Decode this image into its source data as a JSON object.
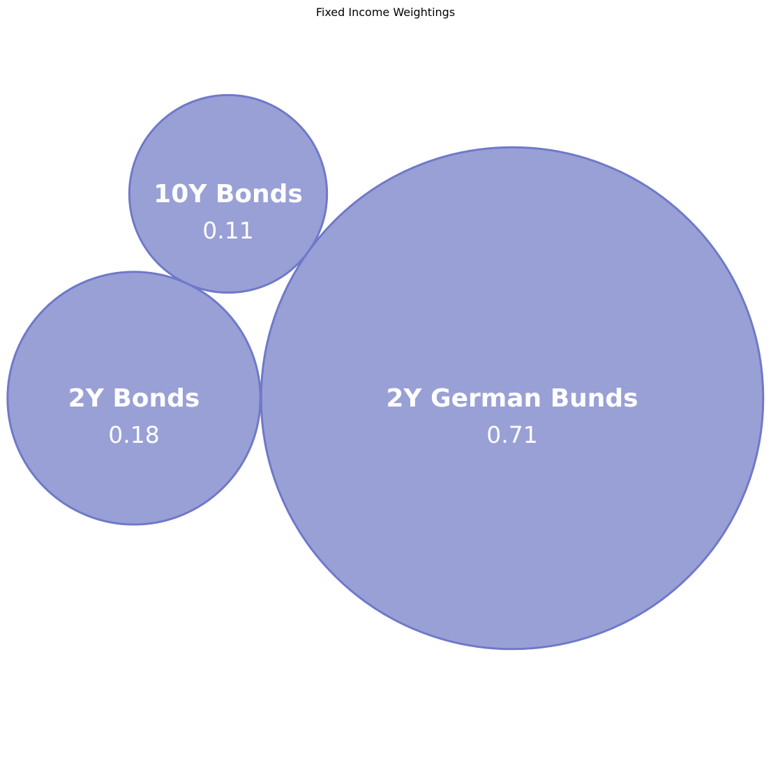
{
  "chart_data": {
    "type": "bubble",
    "title": "Fixed Income Weightings",
    "series": [
      {
        "name": "10Y Bonds",
        "value": 0.11,
        "value_label": "0.11"
      },
      {
        "name": "2Y Bonds",
        "value": 0.18,
        "value_label": "0.18"
      },
      {
        "name": "2Y German Bunds",
        "value": 0.71,
        "value_label": "0.71"
      }
    ],
    "legend": false,
    "grid": false,
    "axes": false
  },
  "colors": {
    "bubble_fill": "#99a0d6",
    "bubble_stroke": "#6f79c9",
    "label_text": "#ffffff",
    "title_text": "#000000"
  }
}
